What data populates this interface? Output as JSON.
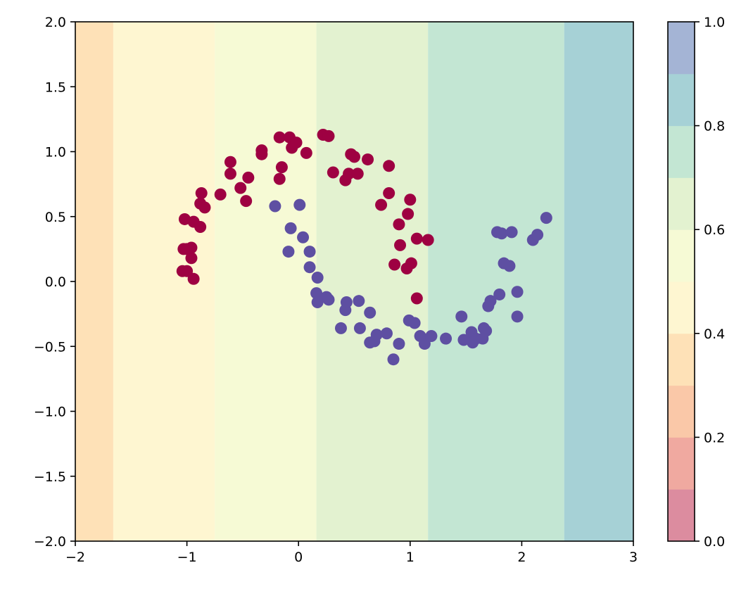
{
  "chart_data": {
    "type": "scatter",
    "title": "",
    "xlabel": "",
    "ylabel": "",
    "xlim": [
      -2,
      3
    ],
    "ylim": [
      -2,
      2
    ],
    "x_ticks": [
      -2,
      -1,
      0,
      1,
      2,
      3
    ],
    "x_tick_labels": [
      "−2",
      "−1",
      "0",
      "1",
      "2",
      "3"
    ],
    "y_ticks": [
      -2.0,
      -1.5,
      -1.0,
      -0.5,
      0.0,
      0.5,
      1.0,
      1.5,
      2.0
    ],
    "y_tick_labels": [
      "−2.0",
      "−1.5",
      "−1.0",
      "−0.5",
      "0.0",
      "0.5",
      "1.0",
      "1.5",
      "2.0"
    ],
    "grid": false,
    "background_regions": {
      "description_of_value": "predicted probability, constant along y",
      "boundaries_x": [
        -2,
        -1.66,
        -0.75,
        0.16,
        1.16,
        2.38,
        3
      ],
      "levels": [
        0.3,
        0.4,
        0.5,
        0.6,
        0.7,
        0.8
      ],
      "colors": [
        "#fee1b7",
        "#fef6d1",
        "#f6fad5",
        "#e3f2d0",
        "#c3e6d3",
        "#a6d1d6"
      ]
    },
    "colorbar": {
      "range": [
        0.0,
        1.0
      ],
      "ticks": [
        0.0,
        0.2,
        0.4,
        0.6,
        0.8,
        1.0
      ],
      "tick_labels": [
        "0.0",
        "0.2",
        "0.4",
        "0.6",
        "0.8",
        "1.0"
      ],
      "levels": [
        0.0,
        0.1,
        0.2,
        0.3,
        0.4,
        0.5,
        0.6,
        0.7,
        0.8,
        0.9,
        1.0
      ],
      "colors": [
        "#dc8c9f",
        "#f0a9a0",
        "#fac8a8",
        "#fee1b7",
        "#fef6d1",
        "#f6fad5",
        "#e3f2d0",
        "#c3e6d3",
        "#a6d1d6",
        "#a4b4d5"
      ]
    },
    "series": [
      {
        "class": 0,
        "color": "#9e0142",
        "points": [
          [
            -1.04,
            0.08
          ],
          [
            -1.0,
            0.08
          ],
          [
            -0.94,
            0.02
          ],
          [
            -0.96,
            0.18
          ],
          [
            -1.0,
            0.25
          ],
          [
            -0.96,
            0.26
          ],
          [
            -1.03,
            0.25
          ],
          [
            -1.02,
            0.48
          ],
          [
            -0.94,
            0.46
          ],
          [
            -0.88,
            0.42
          ],
          [
            -0.88,
            0.6
          ],
          [
            -0.84,
            0.57
          ],
          [
            -0.87,
            0.68
          ],
          [
            -0.7,
            0.67
          ],
          [
            -0.61,
            0.83
          ],
          [
            -0.61,
            0.92
          ],
          [
            -0.52,
            0.72
          ],
          [
            -0.47,
            0.62
          ],
          [
            -0.45,
            0.8
          ],
          [
            -0.33,
            0.98
          ],
          [
            -0.33,
            1.01
          ],
          [
            -0.17,
            0.79
          ],
          [
            -0.15,
            0.88
          ],
          [
            -0.17,
            1.11
          ],
          [
            -0.08,
            1.11
          ],
          [
            -0.06,
            1.03
          ],
          [
            -0.02,
            1.07
          ],
          [
            0.07,
            0.99
          ],
          [
            0.22,
            1.13
          ],
          [
            0.27,
            1.12
          ],
          [
            0.31,
            0.84
          ],
          [
            0.42,
            0.78
          ],
          [
            0.45,
            0.83
          ],
          [
            0.47,
            0.98
          ],
          [
            0.5,
            0.96
          ],
          [
            0.53,
            0.83
          ],
          [
            0.62,
            0.94
          ],
          [
            0.74,
            0.59
          ],
          [
            0.81,
            0.89
          ],
          [
            0.81,
            0.68
          ],
          [
            0.9,
            0.44
          ],
          [
            0.98,
            0.52
          ],
          [
            1.0,
            0.63
          ],
          [
            0.91,
            0.28
          ],
          [
            0.86,
            0.13
          ],
          [
            0.97,
            0.1
          ],
          [
            1.01,
            0.14
          ],
          [
            1.06,
            0.33
          ],
          [
            1.16,
            0.32
          ],
          [
            1.06,
            -0.13
          ]
        ]
      },
      {
        "class": 1,
        "color": "#5e4fa2",
        "points": [
          [
            -0.21,
            0.58
          ],
          [
            0.01,
            0.59
          ],
          [
            -0.07,
            0.41
          ],
          [
            0.04,
            0.34
          ],
          [
            -0.09,
            0.23
          ],
          [
            0.1,
            0.23
          ],
          [
            0.1,
            0.11
          ],
          [
            0.17,
            0.03
          ],
          [
            0.16,
            -0.09
          ],
          [
            0.17,
            -0.16
          ],
          [
            0.25,
            -0.12
          ],
          [
            0.27,
            -0.14
          ],
          [
            0.38,
            -0.36
          ],
          [
            0.42,
            -0.22
          ],
          [
            0.43,
            -0.16
          ],
          [
            0.54,
            -0.15
          ],
          [
            0.55,
            -0.36
          ],
          [
            0.64,
            -0.24
          ],
          [
            0.64,
            -0.47
          ],
          [
            0.68,
            -0.46
          ],
          [
            0.7,
            -0.41
          ],
          [
            0.79,
            -0.4
          ],
          [
            0.85,
            -0.6
          ],
          [
            0.9,
            -0.48
          ],
          [
            0.99,
            -0.3
          ],
          [
            1.04,
            -0.32
          ],
          [
            1.09,
            -0.42
          ],
          [
            1.13,
            -0.48
          ],
          [
            1.19,
            -0.42
          ],
          [
            1.32,
            -0.44
          ],
          [
            1.46,
            -0.27
          ],
          [
            1.48,
            -0.45
          ],
          [
            1.54,
            -0.45
          ],
          [
            1.55,
            -0.39
          ],
          [
            1.56,
            -0.47
          ],
          [
            1.59,
            -0.44
          ],
          [
            1.65,
            -0.44
          ],
          [
            1.66,
            -0.36
          ],
          [
            1.68,
            -0.38
          ],
          [
            1.7,
            -0.19
          ],
          [
            1.72,
            -0.15
          ],
          [
            1.78,
            0.38
          ],
          [
            1.8,
            -0.1
          ],
          [
            1.82,
            0.37
          ],
          [
            1.84,
            0.14
          ],
          [
            1.89,
            0.12
          ],
          [
            1.91,
            0.38
          ],
          [
            1.96,
            -0.08
          ],
          [
            1.96,
            -0.27
          ],
          [
            2.1,
            0.32
          ],
          [
            2.14,
            0.36
          ],
          [
            2.22,
            0.49
          ]
        ]
      }
    ]
  }
}
